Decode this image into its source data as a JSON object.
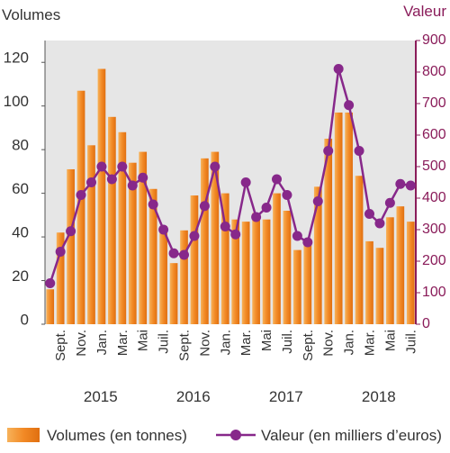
{
  "chart_data": {
    "type": "bar-line",
    "y_label": "Volumes",
    "y2_label": "Valeur",
    "categories": [
      null,
      "Sept.",
      null,
      "Nov.",
      null,
      "Jan.",
      null,
      "Mar.",
      null,
      "Mai",
      null,
      "Juil.",
      null,
      "Sept.",
      null,
      "Nov.",
      null,
      "Jan.",
      null,
      "Mar.",
      null,
      "Mai",
      null,
      "Juil.",
      null,
      "Sept.",
      null,
      "Nov.",
      null,
      "Jan.",
      null,
      "Mar.",
      null,
      "Mai",
      null,
      "Juil."
    ],
    "x_group_labels": [
      "2015",
      "2016",
      "2017",
      "2018"
    ],
    "series": [
      {
        "name": "Volumes (en tonnes)",
        "color": "#f28a26",
        "values": [
          16,
          42,
          71,
          107,
          82,
          117,
          95,
          88,
          74,
          79,
          62,
          45,
          28,
          43,
          59,
          76,
          79,
          60,
          48,
          47,
          51,
          48,
          60,
          52,
          34,
          37,
          63,
          85,
          97,
          97,
          68,
          38,
          35,
          49,
          54,
          47
        ]
      },
      {
        "name": "Valeur (en milliers d’euros)",
        "color": "#87288a",
        "axis": "y2",
        "values": [
          130,
          230,
          295,
          410,
          450,
          500,
          460,
          500,
          440,
          465,
          380,
          300,
          225,
          220,
          280,
          375,
          500,
          310,
          285,
          450,
          340,
          370,
          460,
          410,
          280,
          260,
          390,
          550,
          810,
          695,
          550,
          350,
          320,
          385,
          445,
          440
        ]
      }
    ],
    "ylim": [
      0,
      130
    ],
    "yticks": [
      0,
      20,
      40,
      60,
      80,
      100,
      120
    ],
    "y2lim": [
      0,
      900
    ],
    "y2ticks": [
      0,
      100,
      200,
      300,
      400,
      500,
      600,
      700,
      800,
      900
    ]
  }
}
